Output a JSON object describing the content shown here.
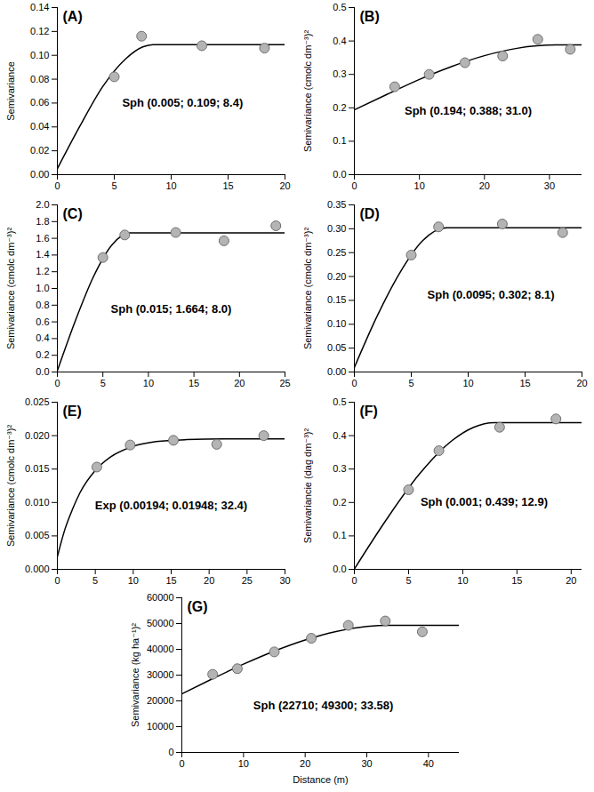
{
  "chart_data": [
    {
      "type": "scatter",
      "title": "(A)",
      "ylabel": "Semivariance",
      "x": [
        5,
        7.4,
        12.7,
        18.2
      ],
      "values": [
        0.082,
        0.116,
        0.108,
        0.106
      ],
      "color": "#b4b4b4",
      "fit": {
        "type": "line",
        "color": "#000000",
        "x": [
          0,
          2,
          4,
          6,
          7.5,
          8.4,
          20
        ],
        "values": [
          0.005,
          0.041,
          0.074,
          0.097,
          0.107,
          0.109,
          0.109
        ]
      },
      "annotation": "Sph (0.005; 0.109; 8.4)",
      "xlim": [
        0,
        20
      ],
      "xticks": [
        0,
        5,
        10,
        15,
        20
      ],
      "ylim": [
        0,
        0.14
      ],
      "yticks": [
        {
          "value": 0,
          "label": "0.00"
        },
        {
          "value": 0.02,
          "label": "0.02"
        },
        {
          "value": 0.04,
          "label": "0.04"
        },
        {
          "value": 0.06,
          "label": "0.06"
        },
        {
          "value": 0.08,
          "label": "0.08"
        },
        {
          "value": 0.1,
          "label": "0.10"
        },
        {
          "value": 0.12,
          "label": "0.12"
        },
        {
          "value": 0.14,
          "label": "0.14"
        }
      ]
    },
    {
      "type": "scatter",
      "title": "(B)",
      "ylabel": "Semivariance (cmolc dm⁻³)²",
      "x": [
        6.2,
        11.5,
        17,
        22.8,
        28.2,
        33.2
      ],
      "values": [
        0.263,
        0.3,
        0.335,
        0.355,
        0.405,
        0.375
      ],
      "color": "#b4b4b4",
      "fit": {
        "type": "line",
        "color": "#000000",
        "x": [
          0,
          5,
          10,
          15,
          20,
          25,
          31,
          35
        ],
        "values": [
          0.194,
          0.24,
          0.285,
          0.324,
          0.356,
          0.378,
          0.388,
          0.388
        ]
      },
      "annotation": "Sph (0.194; 0.388; 31.0)",
      "xlim": [
        0,
        35
      ],
      "xticks": [
        0,
        10,
        20,
        30
      ],
      "ylim": [
        0,
        0.5
      ],
      "yticks": [
        {
          "value": 0,
          "label": "0.0"
        },
        0.1,
        0.2,
        0.3,
        0.4,
        0.5
      ]
    },
    {
      "type": "scatter",
      "title": "(C)",
      "ylabel": "Semivariance (cmolc dm⁻³)²",
      "x": [
        5,
        7.4,
        13,
        18.3,
        24
      ],
      "values": [
        1.37,
        1.64,
        1.67,
        1.57,
        1.75
      ],
      "color": "#b4b4b4",
      "fit": {
        "type": "line",
        "color": "#000000",
        "x": [
          0,
          2,
          4,
          6,
          8,
          25
        ],
        "values": [
          0.015,
          0.62,
          1.149,
          1.522,
          1.664,
          1.664
        ]
      },
      "annotation": "Sph (0.015; 1.664; 8.0)",
      "xlim": [
        0,
        25
      ],
      "xticks": [
        0,
        5,
        10,
        15,
        20,
        25
      ],
      "ylim": [
        0,
        2
      ],
      "yticks": [
        {
          "value": 0,
          "label": "0.0"
        },
        0.2,
        0.4,
        0.6,
        0.8,
        {
          "value": 1,
          "label": "1.0"
        },
        1.2,
        1.4,
        1.6,
        1.8,
        {
          "value": 2,
          "label": "2.0"
        }
      ]
    },
    {
      "type": "scatter",
      "title": "(D)",
      "ylabel": "Semivariance (cmolc dm⁻³)²",
      "x": [
        5,
        7.4,
        13,
        18.3
      ],
      "values": [
        0.245,
        0.304,
        0.31,
        0.292
      ],
      "color": "#b4b4b4",
      "fit": {
        "type": "line",
        "color": "#000000",
        "x": [
          0,
          2,
          4,
          6,
          8.1,
          20
        ],
        "values": [
          0.0095,
          0.117,
          0.208,
          0.275,
          0.302,
          0.302
        ]
      },
      "annotation": "Sph (0.0095; 0.302; 8.1)",
      "xlim": [
        0,
        20
      ],
      "xticks": [
        0,
        5,
        10,
        15,
        20
      ],
      "ylim": [
        0,
        0.35
      ],
      "yticks": [
        {
          "value": 0,
          "label": "0.00"
        },
        0.05,
        {
          "value": 0.1,
          "label": "0.10"
        },
        0.15,
        {
          "value": 0.2,
          "label": "0.20"
        },
        0.25,
        {
          "value": 0.3,
          "label": "0.30"
        },
        0.35
      ]
    },
    {
      "type": "scatter",
      "title": "(E)",
      "ylabel": "Semivariance (cmolc dm⁻³)²",
      "x": [
        5.2,
        9.6,
        15.3,
        21,
        27.2
      ],
      "values": [
        0.0153,
        0.0186,
        0.0193,
        0.0187,
        0.02
      ],
      "color": "#b4b4b4",
      "fit": {
        "type": "line",
        "color": "#000000",
        "x": [
          0,
          1,
          2,
          3,
          5,
          7,
          10,
          13,
          17,
          22,
          30
        ],
        "values": [
          0.0019,
          0.006,
          0.009,
          0.0115,
          0.0148,
          0.0168,
          0.0184,
          0.0191,
          0.0194,
          0.0195,
          0.0195
        ]
      },
      "annotation": "Exp (0.00194; 0.01948; 32.4)",
      "xlim": [
        0,
        30
      ],
      "xticks": [
        0,
        5,
        10,
        15,
        20,
        25,
        30
      ],
      "ylim": [
        0,
        0.025
      ],
      "yticks": [
        {
          "value": 0,
          "label": "0.000"
        },
        0.005,
        {
          "value": 0.01,
          "label": "0.010"
        },
        0.015,
        {
          "value": 0.02,
          "label": "0.020"
        },
        0.025
      ]
    },
    {
      "type": "scatter",
      "title": "(F)",
      "ylabel": "Semivariancie (dag dm⁻³)²",
      "x": [
        5,
        7.8,
        13.4,
        18.6
      ],
      "values": [
        0.238,
        0.355,
        0.425,
        0.45
      ],
      "color": "#b4b4b4",
      "fit": {
        "type": "line",
        "color": "#000000",
        "x": [
          0,
          3,
          6,
          9,
          11,
          12.9,
          21
        ],
        "values": [
          0.001,
          0.151,
          0.285,
          0.385,
          0.425,
          0.439,
          0.439
        ]
      },
      "annotation": "Sph (0.001; 0.439; 12.9)",
      "xlim": [
        0,
        21
      ],
      "xticks": [
        0,
        5,
        10,
        15,
        20
      ],
      "ylim": [
        0,
        0.5
      ],
      "yticks": [
        {
          "value": 0,
          "label": "0.0"
        },
        0.1,
        0.2,
        0.3,
        0.4,
        0.5
      ]
    },
    {
      "type": "scatter",
      "title": "(G)",
      "ylabel": "Semivariance (kg ha⁻¹)²",
      "xlabel": "Distance (m)",
      "x": [
        5,
        9,
        15,
        21,
        27,
        33,
        39
      ],
      "values": [
        30300,
        32500,
        39000,
        44300,
        49300,
        51000,
        46800
      ],
      "color": "#b4b4b4",
      "fit": {
        "type": "line",
        "color": "#000000",
        "x": [
          0,
          5,
          10,
          15,
          20,
          25,
          30,
          33.58,
          45
        ],
        "values": [
          22710,
          28605,
          34250,
          39330,
          43640,
          46930,
          48850,
          49300,
          49300
        ]
      },
      "annotation": "Sph (22710; 49300; 33.58)",
      "xlim": [
        0,
        45
      ],
      "xticks": [
        0,
        10,
        20,
        30,
        40
      ],
      "ylim": [
        0,
        60000
      ],
      "yticks": [
        0,
        10000,
        20000,
        30000,
        40000,
        50000,
        60000
      ]
    }
  ]
}
